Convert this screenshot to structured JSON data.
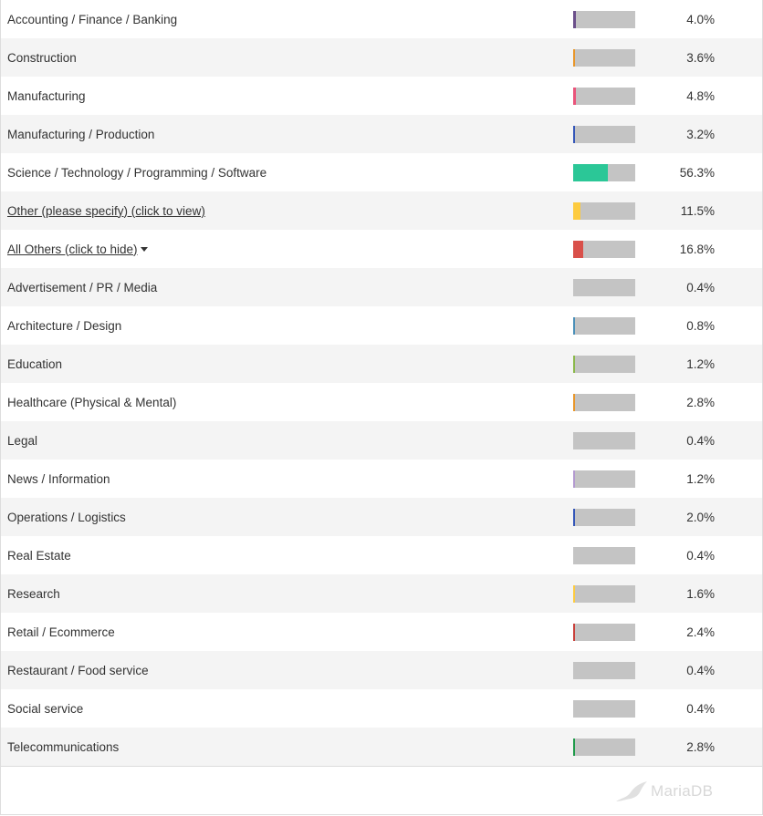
{
  "rows": [
    {
      "label": "Accounting / Finance / Banking",
      "value": 4.0,
      "pct": "4.0%",
      "color": "#6b4f8a",
      "link": false
    },
    {
      "label": "Construction",
      "value": 3.6,
      "pct": "3.6%",
      "color": "#e8962a",
      "link": false
    },
    {
      "label": "Manufacturing",
      "value": 4.8,
      "pct": "4.8%",
      "color": "#e9547a",
      "link": false
    },
    {
      "label": "Manufacturing / Production",
      "value": 3.2,
      "pct": "3.2%",
      "color": "#3456b8",
      "link": false
    },
    {
      "label": "Science / Technology / Programming / Software",
      "value": 56.3,
      "pct": "56.3%",
      "color": "#2bc797",
      "link": false
    },
    {
      "label": "Other (please specify) (click to view)",
      "value": 11.5,
      "pct": "11.5%",
      "color": "#fdcb3f",
      "link": true
    },
    {
      "label": "All Others (click to hide)",
      "value": 16.8,
      "pct": "16.8%",
      "color": "#d9504a",
      "link": true,
      "caret": true
    },
    {
      "label": "Advertisement / PR / Media",
      "value": 0.4,
      "pct": "0.4%",
      "color": "#c4c4c4",
      "link": false
    },
    {
      "label": "Architecture / Design",
      "value": 0.8,
      "pct": "0.8%",
      "color": "#4a8fb8",
      "link": false
    },
    {
      "label": "Education",
      "value": 1.2,
      "pct": "1.2%",
      "color": "#8ab84a",
      "link": false
    },
    {
      "label": "Healthcare (Physical & Mental)",
      "value": 2.8,
      "pct": "2.8%",
      "color": "#e8962a",
      "link": false
    },
    {
      "label": "Legal",
      "value": 0.4,
      "pct": "0.4%",
      "color": "#c4c4c4",
      "link": false
    },
    {
      "label": "News / Information",
      "value": 1.2,
      "pct": "1.2%",
      "color": "#b39ad0",
      "link": false
    },
    {
      "label": "Operations / Logistics",
      "value": 2.0,
      "pct": "2.0%",
      "color": "#3456b8",
      "link": false
    },
    {
      "label": "Real Estate",
      "value": 0.4,
      "pct": "0.4%",
      "color": "#c4c4c4",
      "link": false
    },
    {
      "label": "Research",
      "value": 1.6,
      "pct": "1.6%",
      "color": "#fdcb3f",
      "link": false
    },
    {
      "label": "Retail / Ecommerce",
      "value": 2.4,
      "pct": "2.4%",
      "color": "#c9403a",
      "link": false
    },
    {
      "label": "Restaurant / Food service",
      "value": 0.4,
      "pct": "0.4%",
      "color": "#c4c4c4",
      "link": false
    },
    {
      "label": "Social service",
      "value": 0.4,
      "pct": "0.4%",
      "color": "#c4c4c4",
      "link": false
    },
    {
      "label": "Telecommunications",
      "value": 2.8,
      "pct": "2.8%",
      "color": "#1f9a4a",
      "link": false
    }
  ],
  "footer": {
    "logo_text": "MariaDB"
  }
}
